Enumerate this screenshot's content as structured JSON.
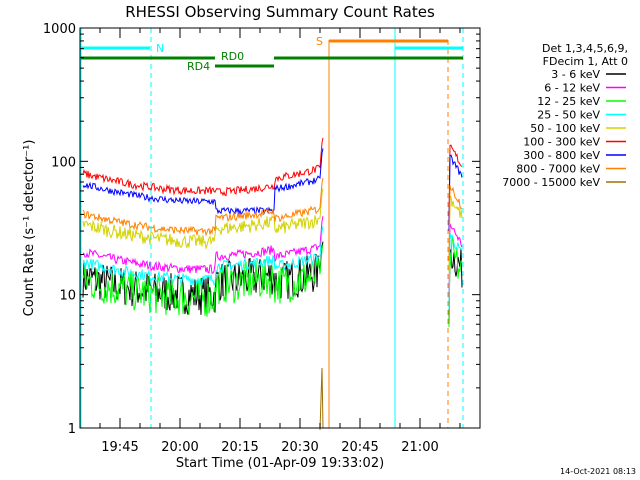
{
  "chart_data": {
    "type": "line",
    "title": "RHESSI Observing Summary Count Rates",
    "xlabel": "Start Time (01-Apr-09 19:33:02)",
    "ylabel": "Count Rate (s⁻¹ detector⁻¹)",
    "yscale": "log",
    "ylim": [
      1,
      1000
    ],
    "xlim_minutes": [
      "19:35",
      "21:15"
    ],
    "x_ticks": [
      "19:45",
      "20:00",
      "20:15",
      "20:30",
      "20:45",
      "21:00"
    ],
    "y_ticks": [
      "1",
      "10",
      "100",
      "1000"
    ],
    "legend_header": [
      "Det 1,3,4,5,6,9,",
      "FDecim 1, Att 0"
    ],
    "series": [
      {
        "name": "3 - 6 keV",
        "color": "#000000"
      },
      {
        "name": "6 - 12 keV",
        "color": "#ff00ff"
      },
      {
        "name": "12 - 25 keV",
        "color": "#00ff00"
      },
      {
        "name": "25 - 50 keV",
        "color": "#00ffff"
      },
      {
        "name": "50 - 100 keV",
        "color": "#d2d200"
      },
      {
        "name": "100 - 300 keV",
        "color": "#ff0000"
      },
      {
        "name": "300 - 800 keV",
        "color": "#0000ff"
      },
      {
        "name": "800 - 7000 keV",
        "color": "#ff8000"
      },
      {
        "name": "7000 - 15000 keV",
        "color": "#a07000"
      }
    ],
    "annotations": {
      "saa": "S",
      "night": "N",
      "rd0": "RD0",
      "rd4": "RD4"
    },
    "footer_date": "14-Oct-2021 08:13"
  }
}
